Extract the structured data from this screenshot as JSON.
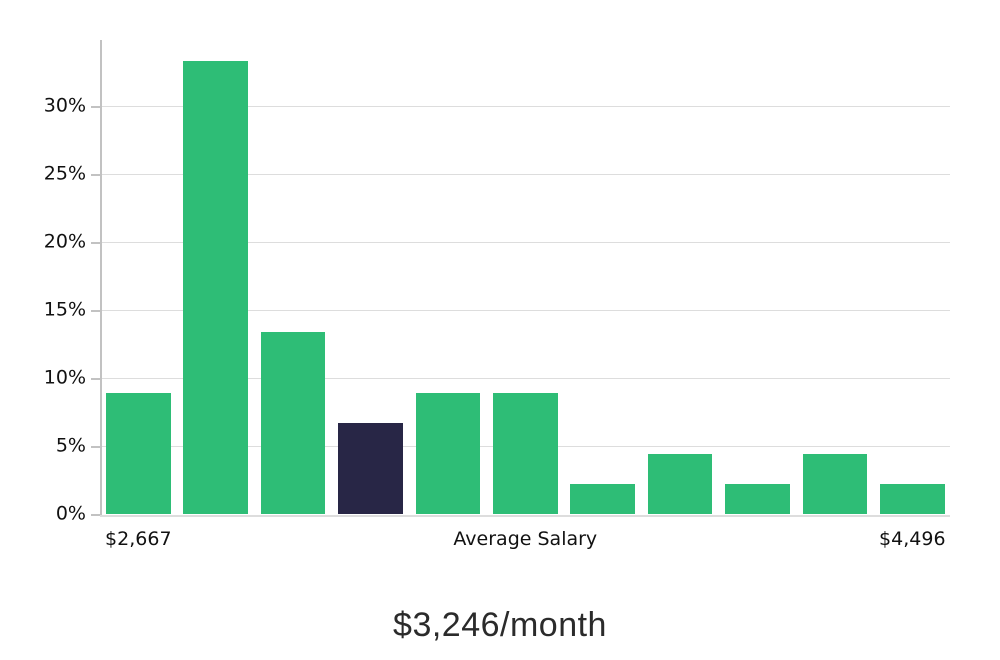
{
  "chart_data": {
    "type": "bar",
    "title": "$3,246/month",
    "values": [
      8.9,
      33.3,
      13.4,
      6.7,
      8.9,
      8.9,
      2.2,
      4.4,
      2.2,
      4.4,
      2.2
    ],
    "unit": "%",
    "highlight_index": 3,
    "ytick_values": [
      0,
      5,
      10,
      15,
      20,
      25,
      30
    ],
    "ytick_labels": [
      "0%",
      "5%",
      "10%",
      "15%",
      "20%",
      "25%",
      "30%"
    ],
    "ylim": [
      0,
      35
    ],
    "xlabels": [
      {
        "label": "$2,667",
        "bar_index": 0
      },
      {
        "label": "Average Salary",
        "bar_index": 5
      },
      {
        "label": "$4,496",
        "bar_index": 10
      }
    ],
    "grid": true,
    "legend": false,
    "colors": {
      "bar": "#2ebd76",
      "highlight": "#282646",
      "gridline": "#dddddd",
      "axis": "#c2c2c2",
      "text": "#111111"
    }
  },
  "footer": {
    "average_salary_label": "$3,246/month"
  }
}
